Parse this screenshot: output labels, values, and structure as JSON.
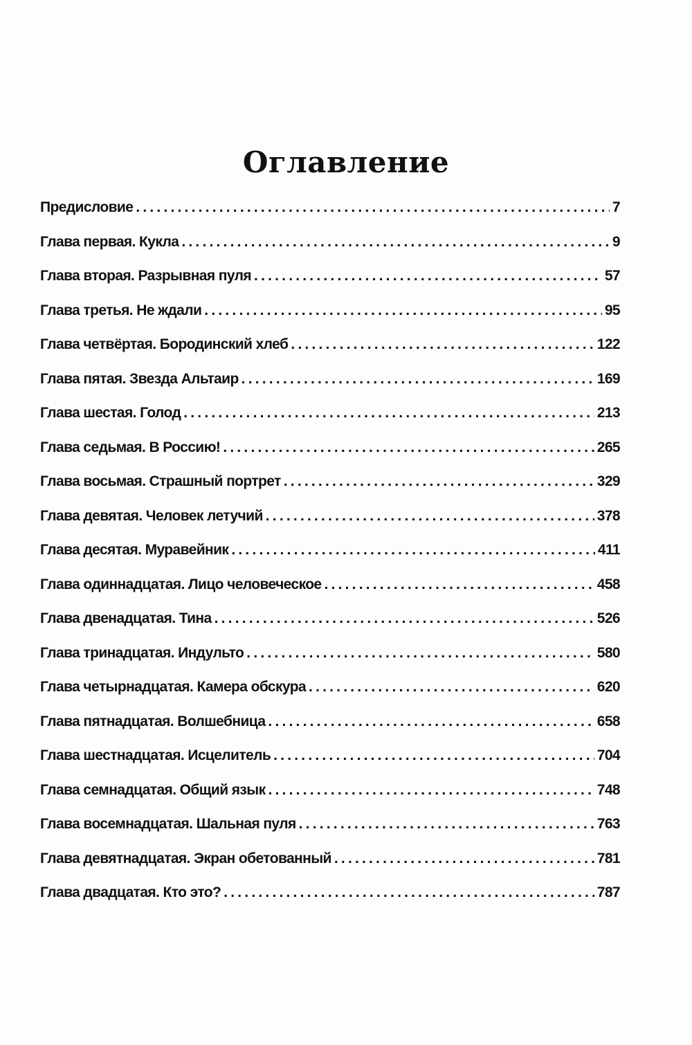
{
  "title": "Оглавление",
  "entries": [
    {
      "label": "Предисловие",
      "page": "7"
    },
    {
      "label": "Глава первая. Кукла",
      "page": "9"
    },
    {
      "label": "Глава вторая. Разрывная пуля",
      "page": "57"
    },
    {
      "label": "Глава третья. Не ждали",
      "page": "95"
    },
    {
      "label": "Глава четвёртая. Бородинский хлеб",
      "page": "122"
    },
    {
      "label": "Глава пятая. Звезда Альтаир",
      "page": "169"
    },
    {
      "label": "Глава шестая. Голод",
      "page": "213"
    },
    {
      "label": "Глава седьмая. В Россию!",
      "page": "265"
    },
    {
      "label": "Глава восьмая. Страшный портрет",
      "page": "329"
    },
    {
      "label": "Глава девятая. Человек летучий",
      "page": "378"
    },
    {
      "label": "Глава десятая. Муравейник",
      "page": "411"
    },
    {
      "label": "Глава одиннадцатая. Лицо человеческое",
      "page": "458"
    },
    {
      "label": "Глава двенадцатая. Тина",
      "page": "526"
    },
    {
      "label": "Глава тринадцатая. Индульто",
      "page": "580"
    },
    {
      "label": "Глава четырнадцатая. Камера обскура",
      "page": "620"
    },
    {
      "label": "Глава пятнадцатая. Волшебница",
      "page": "658"
    },
    {
      "label": "Глава шестнадцатая. Исцелитель",
      "page": "704"
    },
    {
      "label": "Глава семнадцатая. Общий язык",
      "page": "748"
    },
    {
      "label": "Глава восемнадцатая. Шальная пуля",
      "page": "763"
    },
    {
      "label": "Глава девятнадцатая. Экран обетованный",
      "page": "781"
    },
    {
      "label": "Глава двадцатая. Кто это?",
      "page": "787"
    }
  ]
}
